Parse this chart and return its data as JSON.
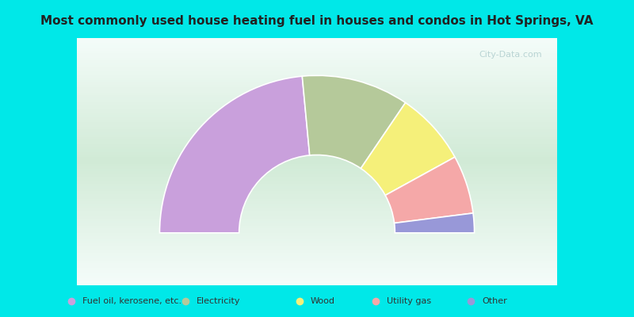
{
  "title": "Most commonly used house heating fuel in houses and condos in Hot Springs, VA",
  "categories": [
    "Fuel oil, kerosene, etc.",
    "Electricity",
    "Wood",
    "Utility gas",
    "Other"
  ],
  "values": [
    47,
    22,
    15,
    12,
    4
  ],
  "colors": [
    "#c9a0dc",
    "#b5c99a",
    "#f5f07a",
    "#f5a8a8",
    "#9898d8"
  ],
  "top_bar_color": "#00e8e8",
  "bottom_bar_color": "#00e8e8",
  "chart_bg_color": "#d0ead8",
  "watermark_color": "#b0cece",
  "title_color": "#222222",
  "legend_text_color": "#333333"
}
